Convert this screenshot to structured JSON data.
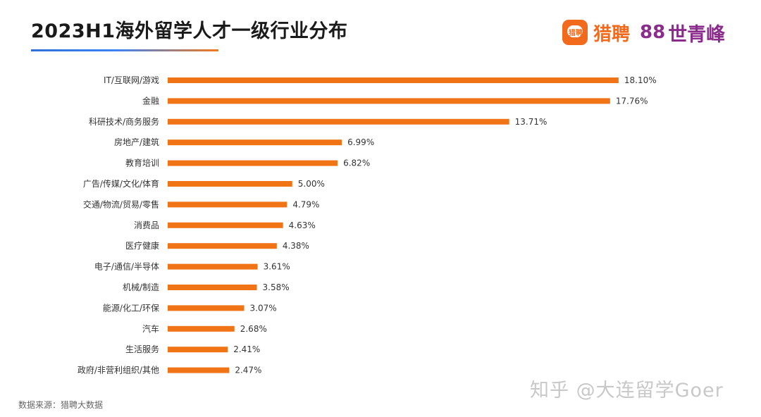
{
  "header": {
    "title": "2023H1海外留学人才一级行业分布",
    "brand_liepin_icon_text": "猎聘",
    "brand_liepin": "猎聘",
    "brand_sqf_mark": "88",
    "brand_sqf": "世青峰"
  },
  "footer": {
    "source": "数据来源：猎聘大数据",
    "watermark": "知乎 @大连留学Goer"
  },
  "colors": {
    "bar": "#f07316",
    "accent_blue": "#2f6fd6",
    "brand_orange": "#f26a1b",
    "brand_purple": "#8b2c8c"
  },
  "chart_data": {
    "type": "bar",
    "orientation": "horizontal",
    "title": "2023H1海外留学人才一级行业分布",
    "xlabel": "",
    "ylabel": "",
    "value_suffix": "%",
    "xlim": [
      0,
      18.5
    ],
    "grid": false,
    "legend": "none",
    "categories": [
      "IT/互联网/游戏",
      "金融",
      "科研技术/商务服务",
      "房地产/建筑",
      "教育培训",
      "广告/传媒/文化/体育",
      "交通/物流/贸易/零售",
      "消费品",
      "医疗健康",
      "电子/通信/半导体",
      "机械/制造",
      "能源/化工/环保",
      "汽车",
      "生活服务",
      "政府/非营利组织/其他"
    ],
    "values": [
      18.1,
      17.76,
      13.71,
      6.99,
      6.82,
      5.0,
      4.79,
      4.63,
      4.38,
      3.61,
      3.58,
      3.07,
      2.68,
      2.41,
      2.47
    ],
    "labels": [
      "18.10%",
      "17.76%",
      "13.71%",
      "6.99%",
      "6.82%",
      "5.00%",
      "4.79%",
      "4.63%",
      "4.38%",
      "3.61%",
      "3.58%",
      "3.07%",
      "2.68%",
      "2.41%",
      "2.47%"
    ]
  }
}
